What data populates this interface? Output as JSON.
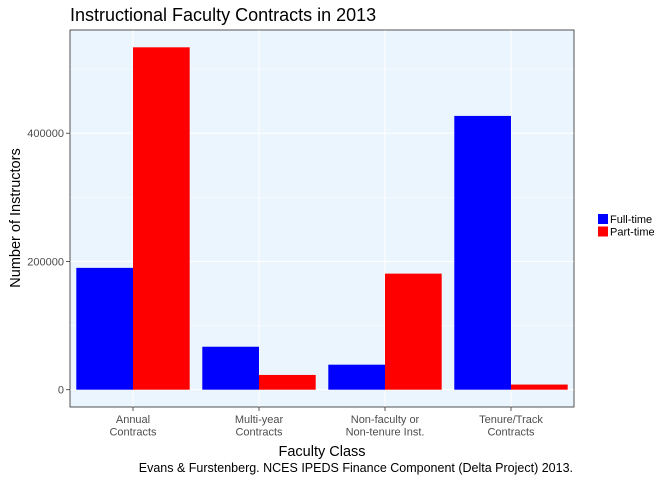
{
  "chart_data": {
    "type": "bar",
    "title": "Instructional Faculty Contracts in 2013",
    "xlabel": "Faculty Class",
    "ylabel": "Number of Instructors",
    "caption": "Evans & Furstenberg. NCES IPEDS Finance Component (Delta Project) 2013.",
    "categories": [
      [
        "Annual",
        "Contracts"
      ],
      [
        "Multi-year",
        "Contracts"
      ],
      [
        "Non-faculty or",
        "Non-tenure Inst."
      ],
      [
        "Tenure/Track",
        "Contracts"
      ]
    ],
    "series": [
      {
        "name": "Full-time",
        "color": "#0000ff",
        "values": [
          190000,
          67000,
          39000,
          427000
        ]
      },
      {
        "name": "Part-time",
        "color": "#ff0000",
        "values": [
          534000,
          23000,
          181000,
          8000
        ]
      }
    ],
    "ylim": [
      -27000,
      561000
    ],
    "yticks": [
      0,
      200000,
      400000
    ],
    "ytick_labels": [
      "0",
      "200000",
      "400000"
    ],
    "grid": true,
    "panel_background": "#ebf5fd",
    "legend_position": "right"
  }
}
